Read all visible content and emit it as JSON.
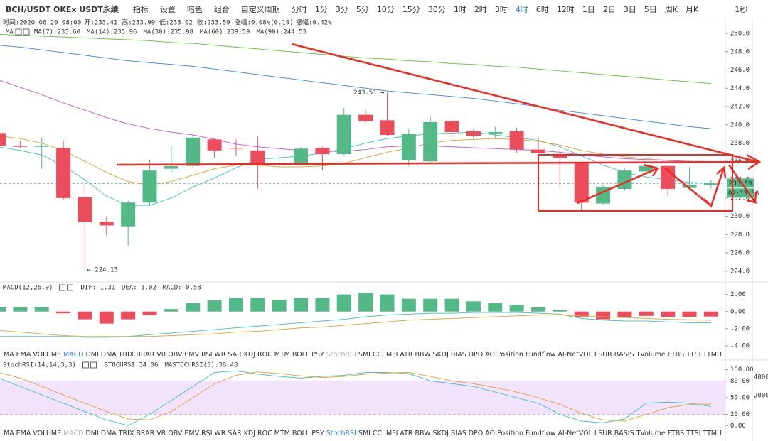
{
  "toolbar": {
    "symbol": "BCH/USDT OKEx USDT永续",
    "tools": [
      "指标",
      "设置",
      "暗色",
      "组合"
    ],
    "custom": "自定义周期",
    "periods": [
      "分时",
      "1分",
      "3分",
      "5分",
      "10分",
      "15分",
      "30分",
      "1时",
      "2时",
      "3时",
      "4时",
      "6时",
      "12时",
      "1日",
      "2日",
      "3日",
      "5日",
      "周K",
      "月K"
    ],
    "active_period": "4时",
    "speed": "1秒"
  },
  "indicator_tabs": [
    "MA",
    "EMA",
    "VOLUME",
    "MACD",
    "DMI",
    "DMA",
    "TRIX",
    "BRAR",
    "VR",
    "OBV",
    "EMV",
    "RSI",
    "WR",
    "SAR",
    "KDJ",
    "ROC",
    "MTM",
    "BOLL",
    "PSY",
    "StochRSI",
    "SMI",
    "CCI",
    "MFI",
    "ATR",
    "BBW",
    "SKDJ",
    "BIAS",
    "DPO",
    "AO",
    "Position",
    "Fundflow",
    "AI-NetVOL",
    "LSUR",
    "BASIS",
    "TVolume",
    "FTBS",
    "TTSI",
    "TTMU"
  ],
  "side_panel": [
    "40000",
    "20000"
  ],
  "chart_data": [
    {
      "type": "candlestick",
      "legend_label": "MA",
      "info": [
        "时间:2020-06-20 08:00",
        "开:233.41",
        "高:233.99",
        "低:233.02",
        "收:233.59",
        "涨幅:0.08%(0.19)",
        "振幅:0.42%"
      ],
      "open": [
        239.1,
        237.7,
        237.6,
        237.5,
        232.1,
        229.4,
        228.9,
        231.5,
        235.2,
        235.5,
        238.4,
        237.5,
        237.2,
        235.7,
        235.7,
        237.5,
        236.8,
        241.1,
        240.5,
        236.1,
        236.0,
        240.4,
        239.3,
        239.0,
        239.3,
        237.3,
        236.8,
        235.9,
        231.4,
        233.0,
        234.9,
        235.5,
        233.1,
        233.41
      ],
      "high": [
        239.5,
        238.2,
        238.6,
        238.3,
        233.6,
        230.0,
        231.7,
        236.2,
        237.7,
        239.0,
        238.6,
        238.4,
        238.7,
        236.5,
        237.6,
        237.6,
        241.8,
        241.6,
        243.51,
        239.6,
        240.9,
        240.6,
        239.6,
        239.8,
        239.7,
        238.6,
        237.2,
        236.0,
        233.4,
        235.2,
        235.6,
        235.6,
        235.4,
        233.99
      ],
      "low": [
        237.5,
        237.5,
        235.2,
        231.8,
        224.13,
        227.9,
        226.8,
        231.2,
        234.8,
        235.3,
        236.4,
        236.6,
        233.0,
        235.3,
        235.5,
        235.0,
        236.7,
        240.2,
        238.8,
        235.5,
        235.8,
        238.6,
        238.5,
        238.6,
        236.9,
        236.7,
        233.2,
        230.5,
        231.2,
        232.8,
        234.7,
        232.2,
        232.9,
        233.02
      ],
      "close": [
        237.7,
        237.6,
        237.7,
        232.0,
        229.4,
        229.0,
        231.5,
        235.0,
        235.5,
        238.6,
        237.2,
        237.4,
        235.6,
        235.8,
        237.4,
        236.8,
        241.1,
        240.4,
        238.9,
        239.0,
        240.3,
        239.2,
        238.8,
        239.2,
        237.3,
        236.9,
        236.4,
        231.5,
        233.2,
        235.0,
        235.5,
        233.0,
        233.4,
        233.59
      ],
      "up_color": "#53b987",
      "down_color": "#eb4d5c",
      "series": [
        {
          "name": "MA(7):233.60",
          "color": "#4fc3c3",
          "values": [
            237.6,
            237.2,
            236.7,
            235.5,
            234.0,
            232.2,
            231.2,
            231.2,
            232.0,
            233.2,
            234.2,
            235.3,
            236.2,
            236.4,
            236.6,
            236.9,
            237.4,
            238.0,
            238.5,
            238.8,
            239.0,
            239.1,
            239.2,
            238.9,
            238.6,
            238.3,
            237.6,
            236.6,
            235.6,
            234.8,
            234.3,
            234.0,
            233.7,
            233.6
          ]
        },
        {
          "name": "MA(14):235.96",
          "color": "#e0a84a",
          "values": [
            238.8,
            238.5,
            238.0,
            237.2,
            236.0,
            234.8,
            233.8,
            233.4,
            233.8,
            234.5,
            235.2,
            235.6,
            235.6,
            235.4,
            235.4,
            235.5,
            235.8,
            236.4,
            237.0,
            237.5,
            238.0,
            238.3,
            238.4,
            238.5,
            238.4,
            238.2,
            237.8,
            237.2,
            236.8,
            236.5,
            236.3,
            236.1,
            236.0,
            235.96
          ]
        },
        {
          "name": "MA(30):235.98",
          "color": "#d05fd0",
          "values": [
            244.9,
            244.1,
            243.3,
            242.4,
            241.6,
            240.8,
            240.1,
            239.6,
            239.2,
            238.9,
            238.4,
            237.9,
            237.6,
            237.4,
            237.2,
            237.1,
            237.1,
            237.3,
            237.6,
            237.7,
            237.7,
            237.6,
            237.5,
            237.4,
            237.3,
            237.2,
            237.0,
            236.7,
            236.5,
            236.3,
            236.2,
            236.1,
            236.0,
            235.98
          ]
        },
        {
          "name": "MA(60):239.59",
          "color": "#4a90d9",
          "values": [
            248.7,
            248.5,
            248.2,
            247.9,
            247.6,
            247.3,
            247.0,
            246.8,
            246.6,
            246.4,
            246.1,
            245.8,
            245.5,
            245.2,
            244.9,
            244.6,
            244.3,
            244.0,
            243.7,
            243.5,
            243.3,
            243.1,
            242.9,
            242.6,
            242.3,
            242.0,
            241.6,
            241.3,
            241.0,
            240.7,
            240.4,
            240.1,
            239.8,
            239.59
          ]
        },
        {
          "name": "MA(90):244.53",
          "color": "#6cc24a",
          "values": [
            249.9,
            249.8,
            249.7,
            249.6,
            249.5,
            249.4,
            249.3,
            249.2,
            249.0,
            248.9,
            248.7,
            248.5,
            248.3,
            248.1,
            247.9,
            247.7,
            247.5,
            247.3,
            247.2,
            247.0,
            246.9,
            246.7,
            246.6,
            246.4,
            246.3,
            246.1,
            245.9,
            245.7,
            245.5,
            245.3,
            245.1,
            244.9,
            244.7,
            244.53
          ]
        }
      ],
      "ylim": [
        222.9,
        250.7
      ],
      "yticks": [
        {
          "value": 224,
          "label": "224.0"
        },
        {
          "value": 226,
          "label": "226.0"
        },
        {
          "value": 228,
          "label": "228.0"
        },
        {
          "value": 230,
          "label": "230.0"
        },
        {
          "value": 232,
          "label": "232.0"
        },
        {
          "value": 234,
          "label": "234.0"
        },
        {
          "value": 236,
          "label": "236.0"
        },
        {
          "value": 238,
          "label": "238.0"
        },
        {
          "value": 240,
          "label": "240.0"
        },
        {
          "value": 242,
          "label": "242.0"
        },
        {
          "value": 244,
          "label": "244.0"
        },
        {
          "value": 246,
          "label": "246.0"
        },
        {
          "value": 248,
          "label": "248.0"
        },
        {
          "value": 250,
          "label": "250.0"
        }
      ],
      "annotations": [
        "243.51 →",
        "← 224.13"
      ],
      "price_tags": [
        "233.59",
        "02:13:58"
      ]
    },
    {
      "type": "macd",
      "title": "MACD(12,26,9)",
      "hist_label": "MACD:-0.58",
      "values": [
        0.55,
        0.5,
        0.5,
        -0.2,
        -0.9,
        -1.4,
        -0.9,
        -0.4,
        0.3,
        1.0,
        1.3,
        1.6,
        1.6,
        1.4,
        1.6,
        1.6,
        2.0,
        2.2,
        2.0,
        1.5,
        1.5,
        1.5,
        1.2,
        1.0,
        0.8,
        0.5,
        0.2,
        -0.6,
        -0.9,
        -0.6,
        -0.5,
        -0.6,
        -0.6,
        -0.58
      ],
      "up_color": "#53b987",
      "down_color": "#eb4d5c",
      "series": [
        {
          "name": "DIF:-1.31",
          "color": "#4fc3c3",
          "values": [
            -2.9,
            -2.9,
            -2.9,
            -2.9,
            -3.0,
            -3.0,
            -2.9,
            -2.7,
            -2.5,
            -2.3,
            -2.1,
            -1.9,
            -1.7,
            -1.5,
            -1.3,
            -1.1,
            -0.9,
            -0.6,
            -0.4,
            -0.3,
            -0.2,
            -0.2,
            -0.1,
            -0.1,
            -0.1,
            -0.2,
            -0.3,
            -0.8,
            -1.0,
            -1.1,
            -1.1,
            -1.2,
            -1.3,
            -1.31
          ]
        },
        {
          "name": "DEA:-1.02",
          "color": "#e0a84a",
          "values": [
            -2.2,
            -2.4,
            -2.6,
            -2.8,
            -2.9,
            -2.9,
            -2.9,
            -2.9,
            -2.8,
            -2.7,
            -2.6,
            -2.4,
            -2.3,
            -2.1,
            -1.9,
            -1.8,
            -1.6,
            -1.4,
            -1.2,
            -1.0,
            -0.9,
            -0.8,
            -0.7,
            -0.6,
            -0.5,
            -0.4,
            -0.4,
            -0.5,
            -0.6,
            -0.7,
            -0.8,
            -0.9,
            -0.95,
            -1.02
          ]
        }
      ],
      "ylim": [
        -4.5,
        2.8
      ],
      "yticks": [
        {
          "value": -4,
          "label": "-4.00"
        },
        {
          "value": -2,
          "label": "-2.00"
        },
        {
          "value": 0,
          "label": "0.00"
        },
        {
          "value": 2,
          "label": "2.00"
        }
      ]
    },
    {
      "type": "stochrsi",
      "title": "StochRSI(14,14,3,3)",
      "series": [
        {
          "name": "STOCHRSI:34.06",
          "color": "#4fc3c3",
          "values": [
            85,
            70,
            55,
            40,
            25,
            10,
            0,
            20,
            45,
            70,
            95,
            98,
            92,
            88,
            85,
            88,
            90,
            95,
            95,
            93,
            80,
            75,
            70,
            60,
            50,
            40,
            20,
            8,
            5,
            12,
            40,
            42,
            40,
            34.06
          ]
        },
        {
          "name": "MASTOCHRSI(3):38.48",
          "color": "#e0a84a",
          "values": [
            95,
            85,
            70,
            55,
            40,
            25,
            12,
            10,
            25,
            50,
            75,
            90,
            96,
            93,
            89,
            86,
            88,
            92,
            94,
            95,
            88,
            80,
            75,
            68,
            60,
            50,
            38,
            22,
            10,
            8,
            20,
            32,
            38,
            38.48
          ]
        }
      ],
      "band": [
        20,
        80
      ],
      "band_color": "#f1e3fb",
      "ylim": [
        -6,
        116
      ],
      "yticks": [
        {
          "value": 0,
          "label": "0.00"
        },
        {
          "value": 20,
          "label": "20.00"
        },
        {
          "value": 50,
          "label": "50.00"
        },
        {
          "value": 80,
          "label": "80.00"
        },
        {
          "value": 100,
          "label": "100.00"
        }
      ]
    }
  ]
}
